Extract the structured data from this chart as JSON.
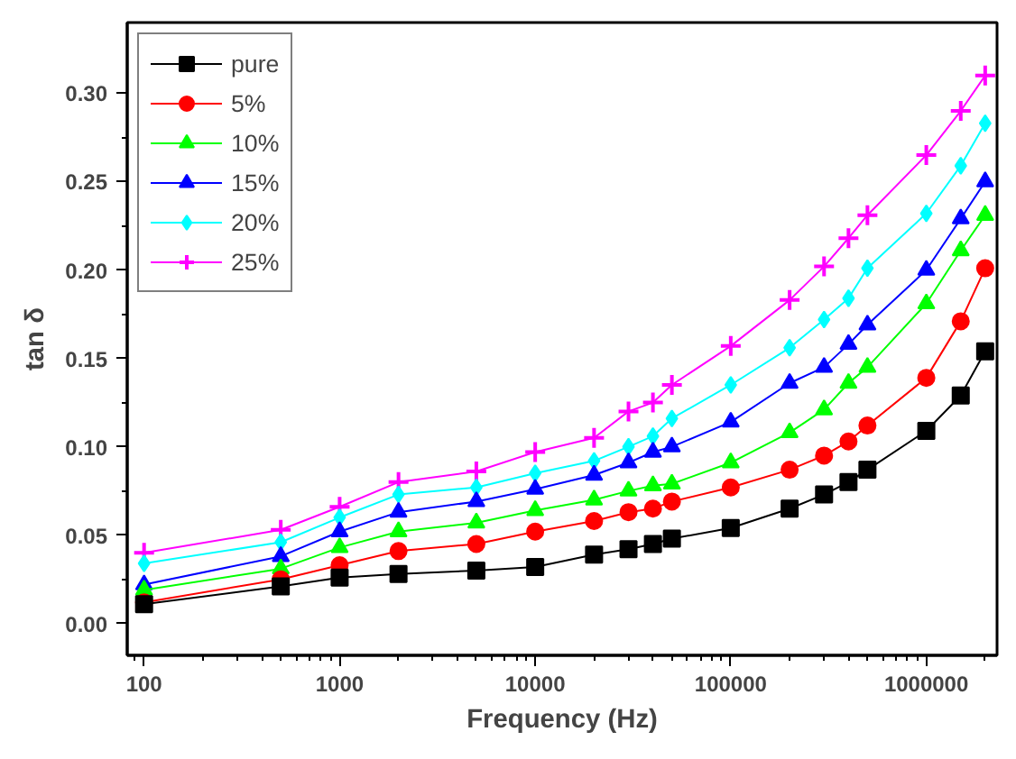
{
  "chart_data": {
    "type": "line",
    "xlabel": "Frequency (Hz)",
    "ylabel": "tan δ",
    "log": "x",
    "grid": false,
    "legend": "top left",
    "line_style": "solid",
    "x": [
      100,
      500,
      1000,
      2000,
      5000,
      10000,
      20000,
      30000,
      40000,
      50000,
      100000,
      200000,
      300000,
      400000,
      500000,
      1000000,
      1500000,
      2000000
    ],
    "xlim": [
      82,
      2300000
    ],
    "xticks": [
      100,
      1000,
      10000,
      100000,
      1000000
    ],
    "ylim": [
      -0.018,
      0.34
    ],
    "yticks": [
      {
        "value": 0,
        "label": "0.00"
      },
      {
        "value": 0.05,
        "label": "0.05"
      },
      {
        "value": 0.1,
        "label": "0.10"
      },
      {
        "value": 0.15,
        "label": "0.15"
      },
      {
        "value": 0.2,
        "label": "0.20"
      },
      {
        "value": 0.25,
        "label": "0.25"
      },
      {
        "value": 0.3,
        "label": "0.30"
      }
    ],
    "series": [
      {
        "name": "pure",
        "color": "#000000",
        "marker": "square",
        "values": [
          0.011,
          0.021,
          0.026,
          0.028,
          0.03,
          0.032,
          0.039,
          0.042,
          0.045,
          0.048,
          0.054,
          0.065,
          0.073,
          0.08,
          0.087,
          0.109,
          0.129,
          0.154
        ]
      },
      {
        "name": "5%",
        "color": "#ff0000",
        "marker": "circle",
        "values": [
          0.012,
          0.025,
          0.033,
          0.041,
          0.045,
          0.052,
          0.058,
          0.063,
          0.065,
          0.069,
          0.077,
          0.087,
          0.095,
          0.103,
          0.112,
          0.139,
          0.171,
          0.201
        ]
      },
      {
        "name": "10%",
        "color": "#00ff00",
        "marker": "triangle",
        "values": [
          0.019,
          0.031,
          0.043,
          0.052,
          0.057,
          0.064,
          0.07,
          0.075,
          0.078,
          0.079,
          0.091,
          0.108,
          0.121,
          0.136,
          0.145,
          0.181,
          0.211,
          0.231
        ]
      },
      {
        "name": "15%",
        "color": "#0000ff",
        "marker": "triangle",
        "values": [
          0.022,
          0.038,
          0.052,
          0.063,
          0.069,
          0.076,
          0.084,
          0.091,
          0.097,
          0.1,
          0.114,
          0.136,
          0.145,
          0.158,
          0.169,
          0.2,
          0.229,
          0.25
        ]
      },
      {
        "name": "20%",
        "color": "#00ffff",
        "marker": "diamond",
        "values": [
          0.034,
          0.046,
          0.06,
          0.073,
          0.077,
          0.085,
          0.092,
          0.1,
          0.106,
          0.116,
          0.135,
          0.156,
          0.172,
          0.184,
          0.201,
          0.232,
          0.259,
          0.283
        ]
      },
      {
        "name": "25%",
        "color": "#ff00ff",
        "marker": "cross",
        "values": [
          0.04,
          0.053,
          0.066,
          0.08,
          0.086,
          0.097,
          0.105,
          0.12,
          0.125,
          0.135,
          0.157,
          0.183,
          0.202,
          0.218,
          0.231,
          0.265,
          0.29,
          0.31
        ]
      }
    ]
  }
}
